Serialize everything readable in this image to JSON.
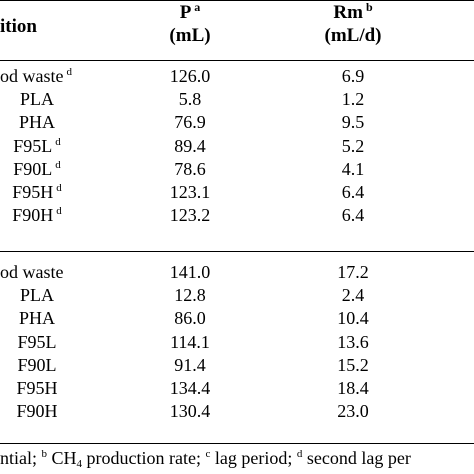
{
  "header": {
    "col1": "ition",
    "col2_line1": "P",
    "col2_sup": "a",
    "col2_line2": "(mL)",
    "col3_line1": "Rm",
    "col3_sup": "b",
    "col3_line2": "(mL/d)"
  },
  "group1": [
    {
      "name": "od waste",
      "sup": "d",
      "p": "126.0",
      "rm": "6.9"
    },
    {
      "name": "PLA",
      "sup": "",
      "p": "5.8",
      "rm": "1.2"
    },
    {
      "name": "PHA",
      "sup": "",
      "p": "76.9",
      "rm": "9.5"
    },
    {
      "name": "F95L",
      "sup": "d",
      "p": "89.4",
      "rm": "5.2"
    },
    {
      "name": "F90L",
      "sup": "d",
      "p": "78.6",
      "rm": "4.1"
    },
    {
      "name": "F95H",
      "sup": "d",
      "p": "123.1",
      "rm": "6.4"
    },
    {
      "name": "F90H",
      "sup": "d",
      "p": "123.2",
      "rm": "6.4"
    }
  ],
  "group2": [
    {
      "name": "od waste",
      "sup": "",
      "p": "141.0",
      "rm": "17.2"
    },
    {
      "name": "PLA",
      "sup": "",
      "p": "12.8",
      "rm": "2.4"
    },
    {
      "name": "PHA",
      "sup": "",
      "p": "86.0",
      "rm": "10.4"
    },
    {
      "name": "F95L",
      "sup": "",
      "p": "114.1",
      "rm": "13.6"
    },
    {
      "name": "F90L",
      "sup": "",
      "p": "91.4",
      "rm": "15.2"
    },
    {
      "name": "F95H",
      "sup": "",
      "p": "134.4",
      "rm": "18.4"
    },
    {
      "name": "F90H",
      "sup": "",
      "p": "130.4",
      "rm": "23.0"
    }
  ],
  "footnote": {
    "part1": "ntial; ",
    "sup_b": "b",
    "part2": " CH",
    "sub_4": "4",
    "part3": " production rate; ",
    "sup_c": "c",
    "part4": " lag period; ",
    "sup_d": "d",
    "part5": " second lag per"
  }
}
